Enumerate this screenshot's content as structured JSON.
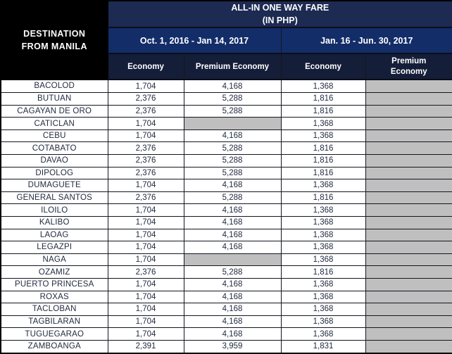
{
  "header": {
    "destination_line1": "DESTINATION",
    "destination_line2": "FROM MANILA",
    "title_line1": "ALL-IN ONE WAY FARE",
    "title_line2": "(IN PHP)",
    "periods": [
      {
        "label": "Oct. 1, 2016 - Jan 14, 2017",
        "columns": [
          "Economy",
          "Premium Economy"
        ]
      },
      {
        "label": "Jan. 16 - Jun. 30, 2017",
        "columns": [
          "Economy",
          "Premium Economy"
        ]
      }
    ]
  },
  "colors": {
    "title_band": "#1d2a52",
    "period_band": "#132d69",
    "class_band": "#141e38",
    "destination_header": "#000000",
    "blank_cell_gray": "#bfbfbf",
    "data_text": "#222b40",
    "header_text": "#ffffff"
  },
  "rows": [
    {
      "destination": "BACOLOD",
      "fares": [
        "1,704",
        "4,168",
        "1,368",
        null
      ]
    },
    {
      "destination": "BUTUAN",
      "fares": [
        "2,376",
        "5,288",
        "1,816",
        null
      ]
    },
    {
      "destination": "CAGAYAN DE ORO",
      "fares": [
        "2,376",
        "5,288",
        "1,816",
        null
      ]
    },
    {
      "destination": "CATICLAN",
      "fares": [
        "1,704",
        null,
        "1,368",
        null
      ]
    },
    {
      "destination": "CEBU",
      "fares": [
        "1,704",
        "4,168",
        "1,368",
        null
      ]
    },
    {
      "destination": "COTABATO",
      "fares": [
        "2,376",
        "5,288",
        "1,816",
        null
      ]
    },
    {
      "destination": "DAVAO",
      "fares": [
        "2,376",
        "5,288",
        "1,816",
        null
      ]
    },
    {
      "destination": "DIPOLOG",
      "fares": [
        "2,376",
        "5,288",
        "1,816",
        null
      ]
    },
    {
      "destination": "DUMAGUETE",
      "fares": [
        "1,704",
        "4,168",
        "1,368",
        null
      ]
    },
    {
      "destination": "GENERAL SANTOS",
      "fares": [
        "2,376",
        "5,288",
        "1,816",
        null
      ]
    },
    {
      "destination": "ILOILO",
      "fares": [
        "1,704",
        "4,168",
        "1,368",
        null
      ]
    },
    {
      "destination": "KALIBO",
      "fares": [
        "1,704",
        "4,168",
        "1,368",
        null
      ]
    },
    {
      "destination": "LAOAG",
      "fares": [
        "1,704",
        "4,168",
        "1,368",
        null
      ]
    },
    {
      "destination": "LEGAZPI",
      "fares": [
        "1,704",
        "4,168",
        "1,368",
        null
      ]
    },
    {
      "destination": "NAGA",
      "fares": [
        "1,704",
        null,
        "1,368",
        null
      ]
    },
    {
      "destination": "OZAMIZ",
      "fares": [
        "2,376",
        "5,288",
        "1,816",
        null
      ]
    },
    {
      "destination": "PUERTO PRINCESA",
      "fares": [
        "1,704",
        "4,168",
        "1,368",
        null
      ]
    },
    {
      "destination": "ROXAS",
      "fares": [
        "1,704",
        "4,168",
        "1,368",
        null
      ]
    },
    {
      "destination": "TACLOBAN",
      "fares": [
        "1,704",
        "4,168",
        "1,368",
        null
      ]
    },
    {
      "destination": "TAGBILARAN",
      "fares": [
        "1,704",
        "4,168",
        "1,368",
        null
      ]
    },
    {
      "destination": "TUGUEGARAO",
      "fares": [
        "1,704",
        "4,168",
        "1,368",
        null
      ]
    },
    {
      "destination": "ZAMBOANGA",
      "fares": [
        "2,391",
        "3,959",
        "1,831",
        null
      ]
    }
  ]
}
